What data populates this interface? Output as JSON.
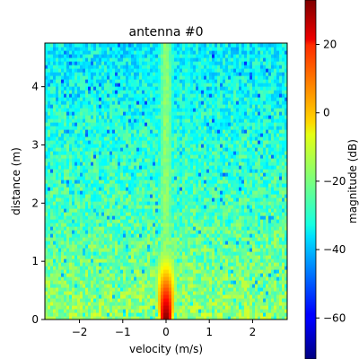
{
  "chart_data": {
    "type": "heatmap",
    "title": "antenna #0",
    "xlabel": "velocity (m/s)",
    "ylabel": "distance (m)",
    "colorbar_label": "magnitude (dB)",
    "colormap": "jet",
    "xlim": [
      -2.8,
      2.8
    ],
    "ylim": [
      0,
      4.75
    ],
    "clim": [
      -72,
      33
    ],
    "x_ticks": [
      -2,
      -1,
      0,
      1,
      2
    ],
    "x_tick_labels": [
      "−2",
      "−1",
      "0",
      "1",
      "2"
    ],
    "y_ticks": [
      0,
      1,
      2,
      3,
      4
    ],
    "y_tick_labels": [
      "0",
      "1",
      "2",
      "3",
      "4"
    ],
    "colorbar_ticks": [
      20,
      0,
      -20,
      -40,
      -60
    ],
    "colorbar_tick_labels": [
      "20",
      "0",
      "−20",
      "−40",
      "−60"
    ],
    "background_db": {
      "at_distance_0": -17,
      "at_distance_2": -25,
      "at_distance_4_5": -33
    },
    "features": [
      {
        "description": "strong static return near zero velocity",
        "velocity": 0,
        "distance_range": [
          0,
          1.0
        ],
        "peak_db": 33
      },
      {
        "description": "zero-velocity stripe across all distances",
        "velocity": 0,
        "db": -18
      },
      {
        "description": "weaker stripe",
        "velocity": 0.5,
        "db": -26
      }
    ]
  }
}
